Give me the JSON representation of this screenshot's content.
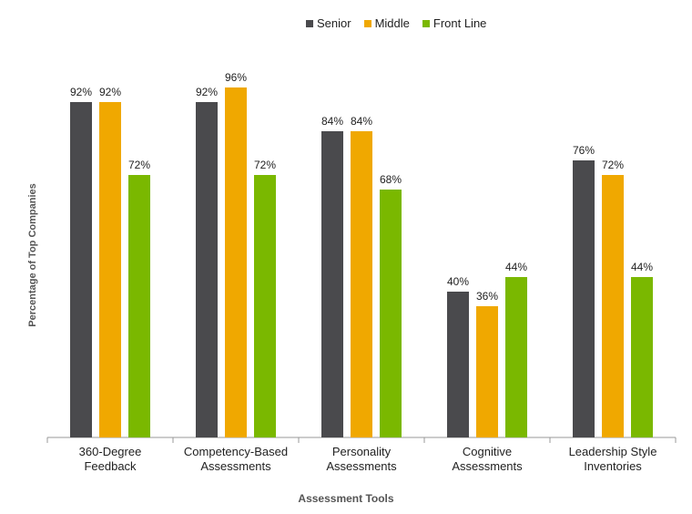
{
  "chart_data": {
    "type": "bar",
    "title": "",
    "xlabel": "Assessment  Tools",
    "ylabel": "Percentage of Top Companies",
    "ylim": [
      0,
      100
    ],
    "categories": [
      [
        "360-Degree",
        "Feedback"
      ],
      [
        "Competency-Based",
        "Assessments"
      ],
      [
        "Personality",
        "Assessments"
      ],
      [
        "Cognitive",
        "Assessments"
      ],
      [
        "Leadership Style",
        "Inventories"
      ]
    ],
    "series": [
      {
        "name": "Senior",
        "color": "#4a4a4d",
        "values": [
          92,
          92,
          84,
          40,
          76
        ],
        "labels": [
          "92%",
          "92%",
          "84%",
          "40%",
          "76%"
        ]
      },
      {
        "name": "Middle",
        "color": "#f0a800",
        "values": [
          92,
          96,
          84,
          36,
          72
        ],
        "labels": [
          "92%",
          "96%",
          "84%",
          "36%",
          "72%"
        ]
      },
      {
        "name": "Front Line",
        "color": "#7ab800",
        "values": [
          72,
          72,
          68,
          44,
          44
        ],
        "labels": [
          "72%",
          "72%",
          "68%",
          "44%",
          "44%"
        ]
      }
    ],
    "legend_position": "top-center"
  }
}
